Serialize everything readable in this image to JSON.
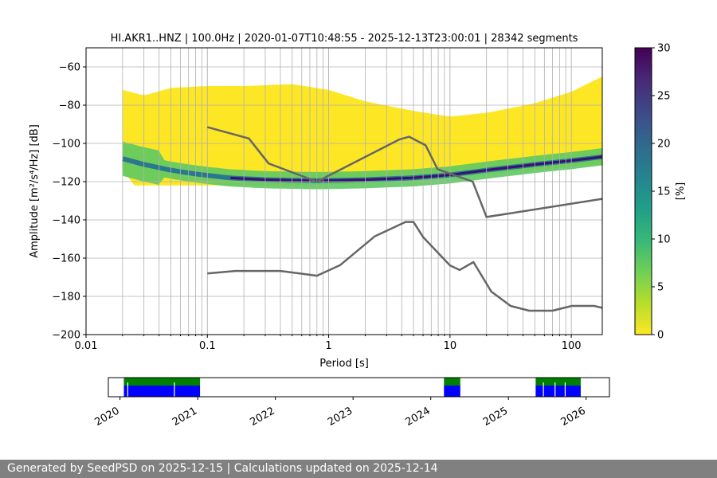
{
  "chart_data": [
    {
      "type": "heatmap",
      "title": "HI.AKR1..HNZ | 100.0Hz | 2020-01-07T10:48:55 - 2025-12-13T23:00:01 | 28342 segments",
      "xlabel": "Period [s]",
      "ylabel": "Amplitude [m²/s⁴/Hz] [dB]",
      "xscale": "log",
      "xlim": [
        0.01,
        180
      ],
      "ylim": [
        -200,
        -50
      ],
      "x_ticks": [
        0.01,
        0.1,
        1,
        10,
        100
      ],
      "x_tick_labels": [
        "0.01",
        "0.1",
        "1",
        "10",
        "100"
      ],
      "y_ticks": [
        -200,
        -180,
        -160,
        -140,
        -120,
        -100,
        -80,
        -60
      ],
      "grid": true,
      "period_range": [
        0.02,
        180
      ],
      "mode_curve": [
        {
          "period": 0.02,
          "db": -108
        },
        {
          "period": 0.03,
          "db": -111
        },
        {
          "period": 0.05,
          "db": -114
        },
        {
          "period": 0.08,
          "db": -116
        },
        {
          "period": 0.15,
          "db": -118
        },
        {
          "period": 0.3,
          "db": -119
        },
        {
          "period": 0.8,
          "db": -119.5
        },
        {
          "period": 2,
          "db": -119
        },
        {
          "period": 5,
          "db": -118
        },
        {
          "period": 10,
          "db": -116.5
        },
        {
          "period": 20,
          "db": -114
        },
        {
          "period": 50,
          "db": -111
        },
        {
          "period": 100,
          "db": -109
        },
        {
          "period": 180,
          "db": -107
        }
      ],
      "upper_envelope": [
        {
          "period": 0.02,
          "db": -72
        },
        {
          "period": 0.03,
          "db": -75
        },
        {
          "period": 0.05,
          "db": -71
        },
        {
          "period": 0.1,
          "db": -70
        },
        {
          "period": 0.2,
          "db": -70
        },
        {
          "period": 0.5,
          "db": -69
        },
        {
          "period": 1,
          "db": -72
        },
        {
          "period": 2,
          "db": -78
        },
        {
          "period": 5,
          "db": -83
        },
        {
          "period": 10,
          "db": -86
        },
        {
          "period": 20,
          "db": -84
        },
        {
          "period": 50,
          "db": -79
        },
        {
          "period": 100,
          "db": -73
        },
        {
          "period": 180,
          "db": -65
        }
      ],
      "lower_envelope": [
        {
          "period": 0.02,
          "db": -114
        },
        {
          "period": 0.025,
          "db": -122
        },
        {
          "period": 0.1,
          "db": -122
        },
        {
          "period": 0.5,
          "db": -122
        },
        {
          "period": 2,
          "db": -121
        },
        {
          "period": 5,
          "db": -120
        },
        {
          "period": 10,
          "db": -118
        },
        {
          "period": 20,
          "db": -116
        },
        {
          "period": 50,
          "db": -114
        },
        {
          "period": 100,
          "db": -112
        },
        {
          "period": 180,
          "db": -111
        }
      ],
      "noise_models": [
        {
          "name": "new-high-noise-model",
          "points": [
            [
              0.1,
              -91.5
            ],
            [
              0.22,
              -97.4
            ],
            [
              0.32,
              -110.5
            ],
            [
              0.8,
              -120
            ],
            [
              3.8,
              -98
            ],
            [
              4.6,
              -96.5
            ],
            [
              6.3,
              -101
            ],
            [
              7.9,
              -113.5
            ],
            [
              15.4,
              -120
            ],
            [
              20,
              -138.5
            ],
            [
              180,
              -129
            ]
          ]
        },
        {
          "name": "new-low-noise-model",
          "points": [
            [
              0.1,
              -168
            ],
            [
              0.17,
              -166.7
            ],
            [
              0.4,
              -166.7
            ],
            [
              0.8,
              -169.2
            ],
            [
              1.24,
              -163.7
            ],
            [
              2.4,
              -148.6
            ],
            [
              4.3,
              -141.1
            ],
            [
              5,
              -141.1
            ],
            [
              6,
              -149
            ],
            [
              10,
              -163.8
            ],
            [
              12,
              -166.2
            ],
            [
              15.6,
              -162.1
            ],
            [
              21.9,
              -177.5
            ],
            [
              31.6,
              -185
            ],
            [
              45,
              -187.5
            ],
            [
              70,
              -187.5
            ],
            [
              101,
              -185
            ],
            [
              154,
              -185
            ],
            [
              180,
              -186
            ]
          ]
        }
      ],
      "colorbar": {
        "label": "[%]",
        "range": [
          0,
          30
        ],
        "ticks": [
          0,
          5,
          10,
          15,
          20,
          25,
          30
        ],
        "stops": [
          "#fde725",
          "#b5de2b",
          "#6ece58",
          "#35b779",
          "#1f9e89",
          "#26828e",
          "#31688e",
          "#3e4989",
          "#482878",
          "#440154"
        ]
      }
    },
    {
      "type": "timeline",
      "x_ticks": [
        "2020",
        "2021",
        "2022",
        "2023",
        "2024",
        "2025",
        "2026"
      ],
      "xlim_years": [
        2019.85,
        2026.3
      ],
      "available_intervals": [
        {
          "start": 2020.05,
          "end": 2021.03
        },
        {
          "start": 2024.17,
          "end": 2024.38
        },
        {
          "start": 2025.35,
          "end": 2025.93
        }
      ],
      "gaps": [
        2020.1,
        2020.7,
        2025.45,
        2025.6,
        2025.73
      ],
      "colors": {
        "data": "#0000ff",
        "coverage": "#008000",
        "gap": "#ffffff"
      }
    }
  ],
  "footer": {
    "text": "Generated by SeedPSD on 2025-12-15 | Calculations updated on 2025-12-14"
  }
}
